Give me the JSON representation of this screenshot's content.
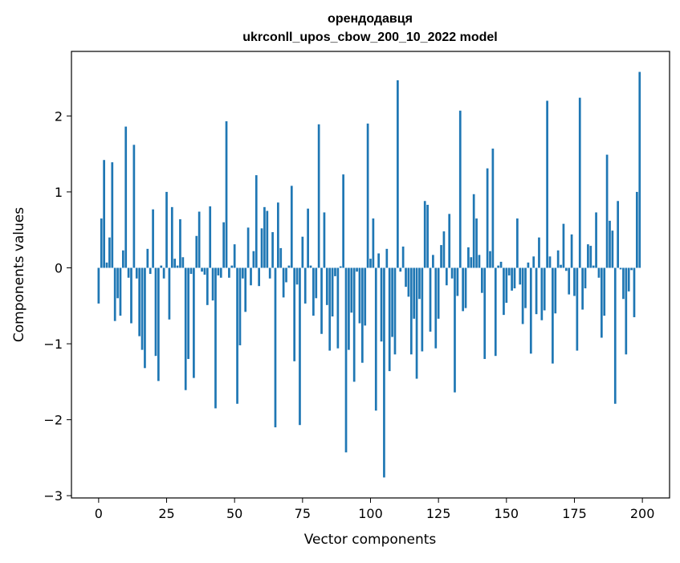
{
  "chart_data": {
    "type": "bar",
    "title_lines": [
      "орендодавця",
      "ukrconll_upos_cbow_200_10_2022 model"
    ],
    "xlabel": "Vector components",
    "ylabel": "Components values",
    "xlim": [
      -10,
      210
    ],
    "ylim": [
      -3.03,
      2.85
    ],
    "xticks": [
      0,
      25,
      50,
      75,
      100,
      125,
      150,
      175,
      200
    ],
    "xtick_labels": [
      "0",
      "25",
      "50",
      "75",
      "100",
      "125",
      "150",
      "175",
      "200"
    ],
    "yticks": [
      -3,
      -2,
      -1,
      0,
      1,
      2
    ],
    "ytick_labels": [
      "−3",
      "−2",
      "−1",
      "0",
      "1",
      "2"
    ],
    "grid": false,
    "bar_color": "#1f77b4",
    "x": [
      0,
      1,
      2,
      3,
      4,
      5,
      6,
      7,
      8,
      9,
      10,
      11,
      12,
      13,
      14,
      15,
      16,
      17,
      18,
      19,
      20,
      21,
      22,
      23,
      24,
      25,
      26,
      27,
      28,
      29,
      30,
      31,
      32,
      33,
      34,
      35,
      36,
      37,
      38,
      39,
      40,
      41,
      42,
      43,
      44,
      45,
      46,
      47,
      48,
      49,
      50,
      51,
      52,
      53,
      54,
      55,
      56,
      57,
      58,
      59,
      60,
      61,
      62,
      63,
      64,
      65,
      66,
      67,
      68,
      69,
      70,
      71,
      72,
      73,
      74,
      75,
      76,
      77,
      78,
      79,
      80,
      81,
      82,
      83,
      84,
      85,
      86,
      87,
      88,
      89,
      90,
      91,
      92,
      93,
      94,
      95,
      96,
      97,
      98,
      99,
      100,
      101,
      102,
      103,
      104,
      105,
      106,
      107,
      108,
      109,
      110,
      111,
      112,
      113,
      114,
      115,
      116,
      117,
      118,
      119,
      120,
      121,
      122,
      123,
      124,
      125,
      126,
      127,
      128,
      129,
      130,
      131,
      132,
      133,
      134,
      135,
      136,
      137,
      138,
      139,
      140,
      141,
      142,
      143,
      144,
      145,
      146,
      147,
      148,
      149,
      150,
      151,
      152,
      153,
      154,
      155,
      156,
      157,
      158,
      159,
      160,
      161,
      162,
      163,
      164,
      165,
      166,
      167,
      168,
      169,
      170,
      171,
      172,
      173,
      174,
      175,
      176,
      177,
      178,
      179,
      180,
      181,
      182,
      183,
      184,
      185,
      186,
      187,
      188,
      189,
      190,
      191,
      192,
      193,
      194,
      195,
      196,
      197,
      198,
      199
    ],
    "values": [
      -0.47,
      0.65,
      1.42,
      0.07,
      0.4,
      1.39,
      -0.7,
      -0.4,
      -0.63,
      0.23,
      1.86,
      -0.13,
      -0.73,
      1.62,
      -0.14,
      -0.9,
      -1.08,
      -1.32,
      0.25,
      -0.08,
      0.77,
      -1.16,
      -1.49,
      0.03,
      -0.14,
      1.0,
      -0.68,
      0.8,
      0.12,
      0.03,
      0.64,
      0.14,
      -1.61,
      -1.2,
      -0.08,
      -1.45,
      0.42,
      0.74,
      -0.05,
      -0.09,
      -0.49,
      0.81,
      -0.43,
      -1.85,
      -0.1,
      -0.13,
      0.6,
      1.93,
      -0.13,
      0.03,
      0.31,
      -1.79,
      -1.02,
      -0.14,
      -0.58,
      0.53,
      -0.23,
      0.22,
      1.22,
      -0.24,
      0.52,
      0.8,
      0.75,
      -0.14,
      0.47,
      -2.1,
      0.86,
      0.26,
      -0.39,
      -0.19,
      0.03,
      1.08,
      -1.23,
      -0.22,
      -2.07,
      0.41,
      -0.47,
      0.78,
      0.03,
      -0.63,
      -0.4,
      1.89,
      -0.87,
      0.73,
      -0.49,
      -1.09,
      -0.64,
      -0.11,
      -1.06,
      0.02,
      1.23,
      -2.43,
      -1.08,
      -0.59,
      -1.5,
      -0.05,
      -0.73,
      -1.25,
      -0.76,
      1.9,
      0.12,
      0.65,
      -1.88,
      0.19,
      -0.97,
      -2.76,
      0.25,
      -1.36,
      -0.91,
      -1.14,
      2.47,
      -0.05,
      0.28,
      -0.25,
      -0.38,
      -1.14,
      -0.67,
      -1.46,
      -0.41,
      -1.1,
      0.88,
      0.83,
      -0.84,
      0.17,
      -1.06,
      -0.67,
      0.3,
      0.48,
      -0.23,
      0.71,
      -0.14,
      -1.64,
      -0.37,
      2.07,
      -0.57,
      -0.53,
      0.27,
      0.14,
      0.97,
      0.65,
      0.17,
      -0.33,
      -1.2,
      1.31,
      0.22,
      1.57,
      -1.16,
      0.03,
      0.08,
      -0.62,
      -0.46,
      -0.1,
      -0.3,
      -0.27,
      0.65,
      -0.22,
      -0.74,
      -0.53,
      0.07,
      -1.13,
      0.15,
      -0.61,
      0.4,
      -0.69,
      -0.56,
      2.2,
      0.15,
      -1.26,
      -0.6,
      0.23,
      0.04,
      0.58,
      -0.04,
      -0.35,
      0.44,
      -0.37,
      -1.09,
      2.24,
      -0.55,
      -0.27,
      0.31,
      0.29,
      0.03,
      0.73,
      -0.13,
      -0.92,
      -0.63,
      1.49,
      0.62,
      0.49,
      -1.79,
      0.88,
      -0.02,
      -0.41,
      -1.14,
      -0.31,
      -0.03,
      -0.65,
      1.0,
      2.58
    ]
  }
}
